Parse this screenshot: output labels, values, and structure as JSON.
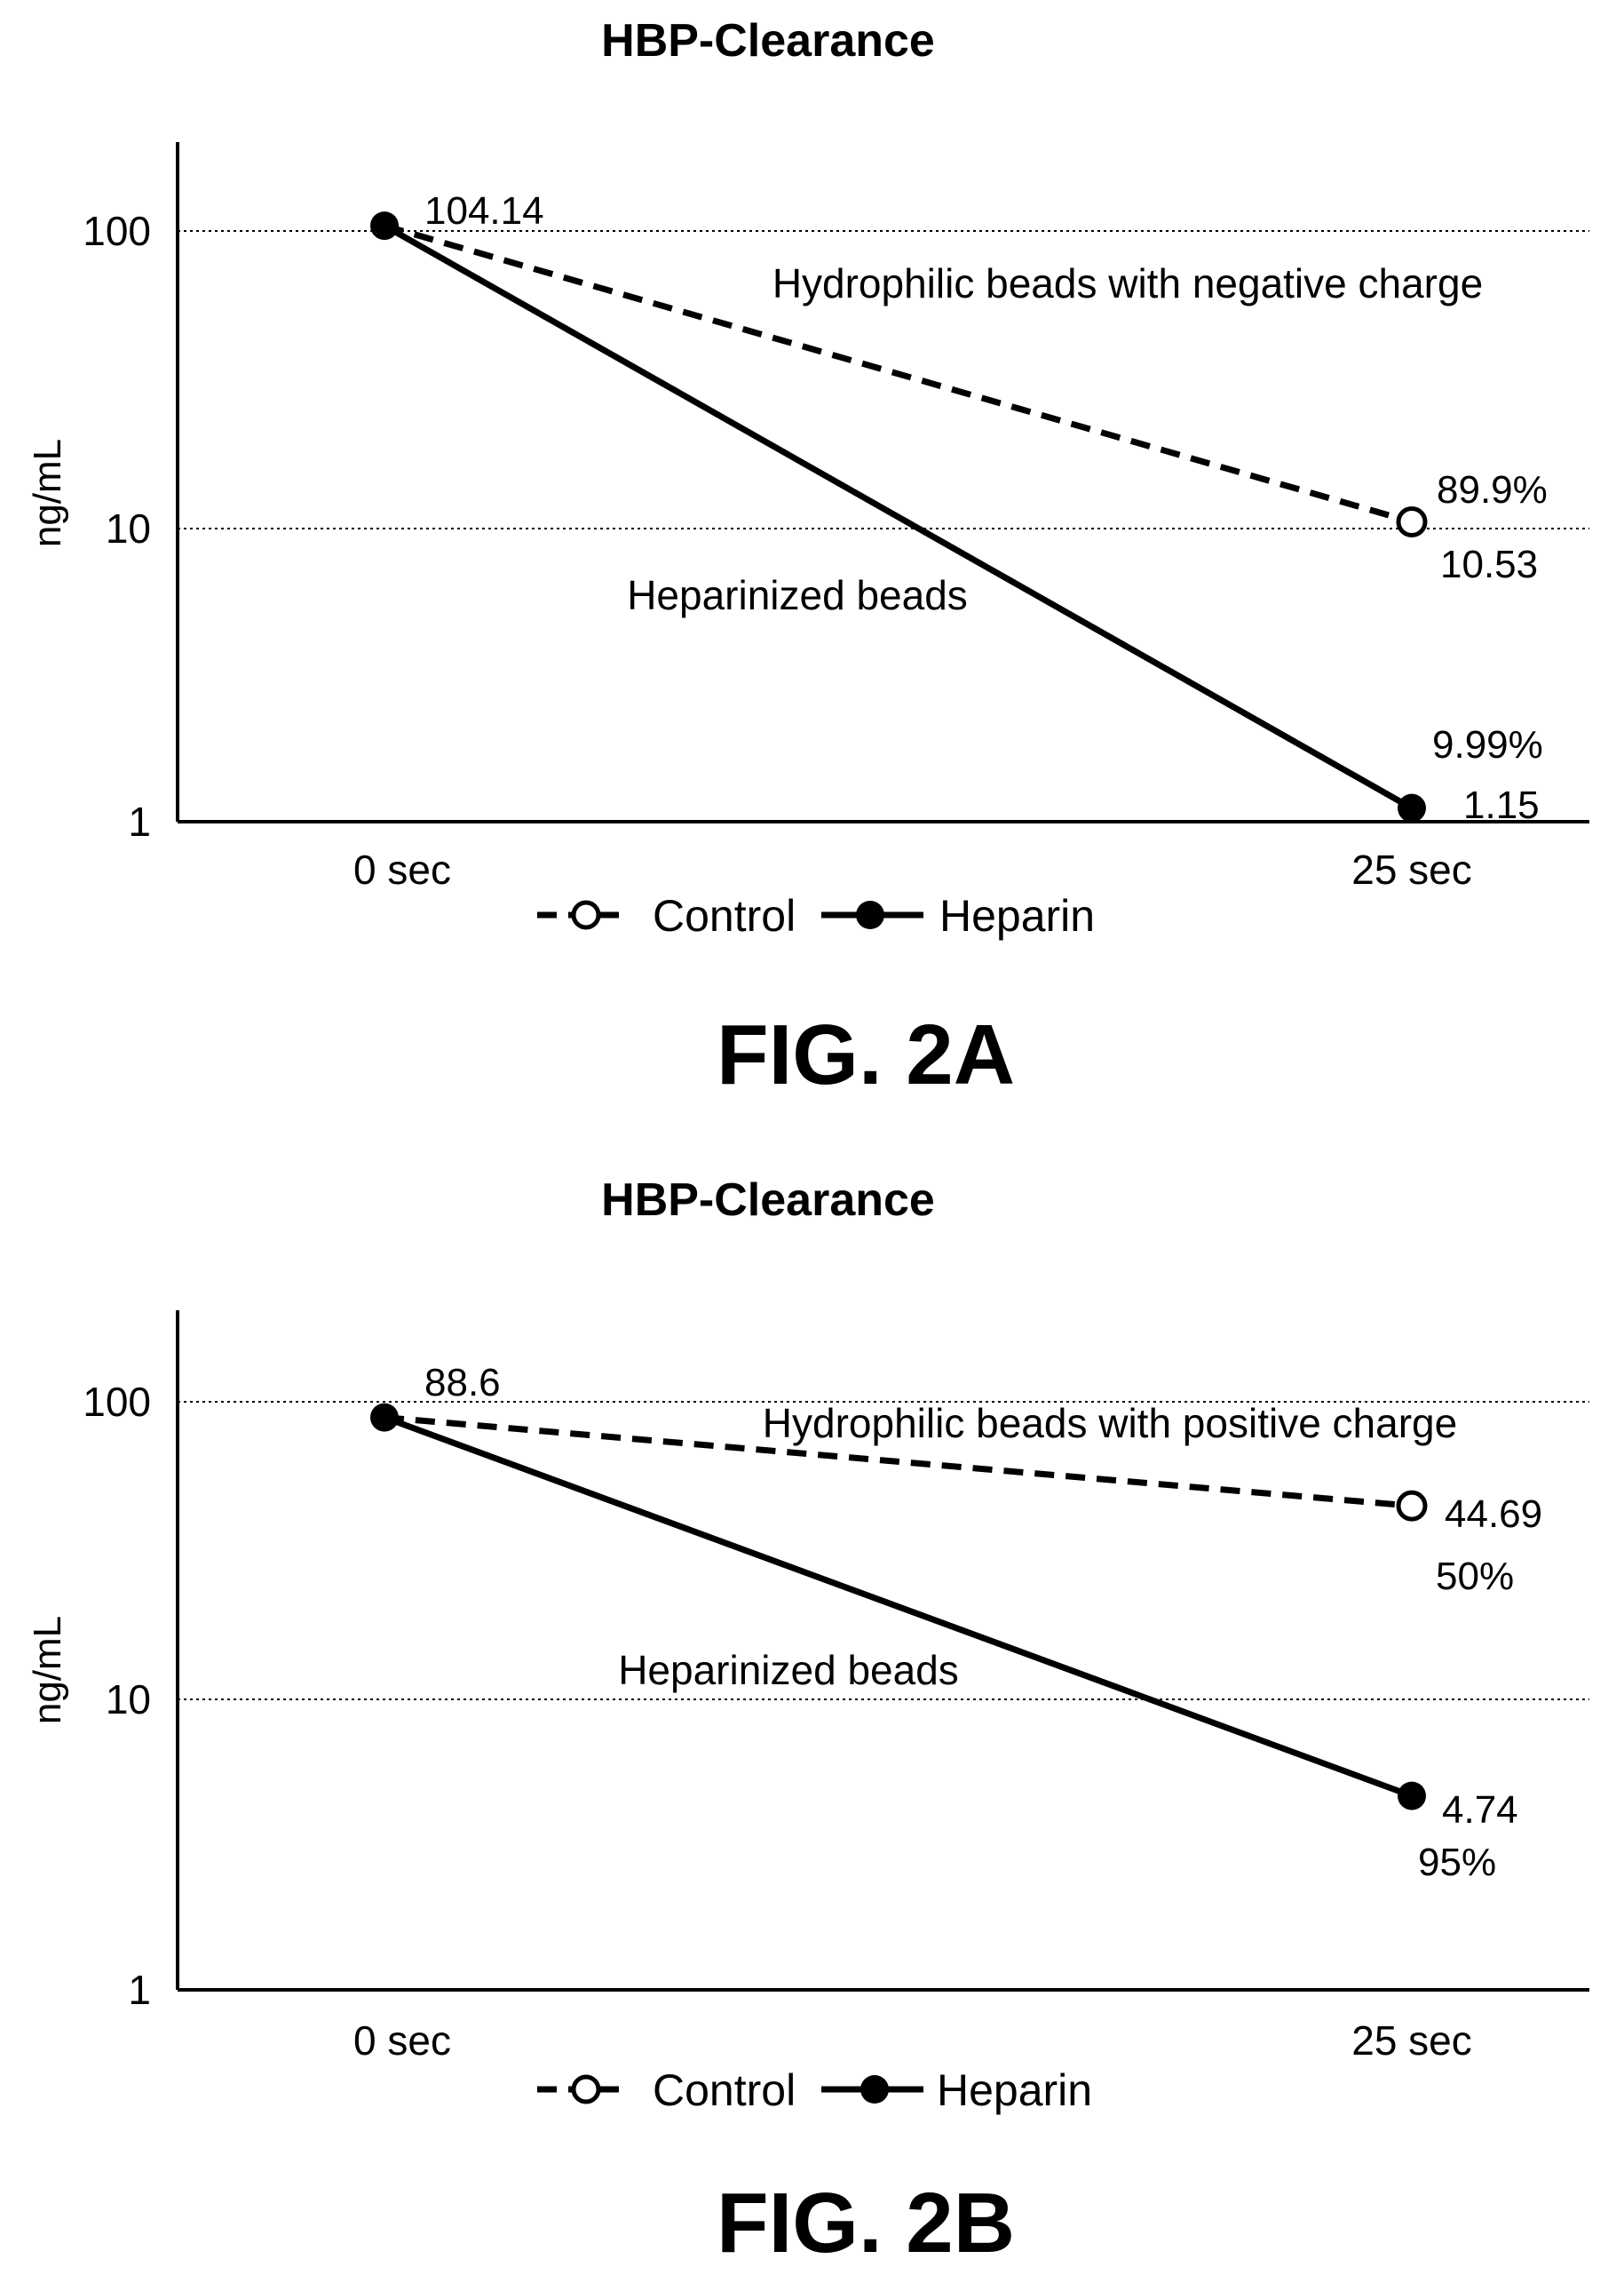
{
  "chart_data": [
    {
      "type": "line",
      "title": "HBP-Clearance",
      "xlabel": "",
      "ylabel": "ng/mL",
      "y_scale": "log",
      "ylim": [
        1,
        200
      ],
      "yticks": [
        "1",
        "10",
        "100"
      ],
      "grid": "horizontal dotted at 10 and 100",
      "categories": [
        "0 sec",
        "25 sec"
      ],
      "series": [
        {
          "name": "Control",
          "style": "dashed",
          "marker": "open-circle",
          "values": [
            104.14,
            10.53
          ]
        },
        {
          "name": "Heparin",
          "style": "solid",
          "marker": "filled-circle",
          "values": [
            104.14,
            1.15
          ]
        }
      ],
      "annotations": [
        "104.14",
        "Hydrophilic beads with negative charge",
        "Heparinized beads",
        "89.9%",
        "10.53",
        "9.99%",
        "1.15"
      ],
      "legend": "bottom-center",
      "figure_label": "FIG. 2A"
    },
    {
      "type": "line",
      "title": "HBP-Clearance",
      "xlabel": "",
      "ylabel": "ng/mL",
      "y_scale": "log",
      "ylim": [
        1,
        200
      ],
      "yticks": [
        "1",
        "10",
        "100"
      ],
      "grid": "horizontal dotted at 10 and 100",
      "categories": [
        "0 sec",
        "25 sec"
      ],
      "series": [
        {
          "name": "Control",
          "style": "dashed",
          "marker": "open-circle",
          "values": [
            88.6,
            44.69
          ]
        },
        {
          "name": "Heparin",
          "style": "solid",
          "marker": "filled-circle",
          "values": [
            88.6,
            4.74
          ]
        }
      ],
      "annotations": [
        "88.6",
        "Hydrophilic beads with positive charge",
        "44.69",
        "50%",
        "Heparinized beads",
        "4.74",
        "95%"
      ],
      "legend": "bottom-center",
      "figure_label": "FIG. 2B"
    }
  ]
}
